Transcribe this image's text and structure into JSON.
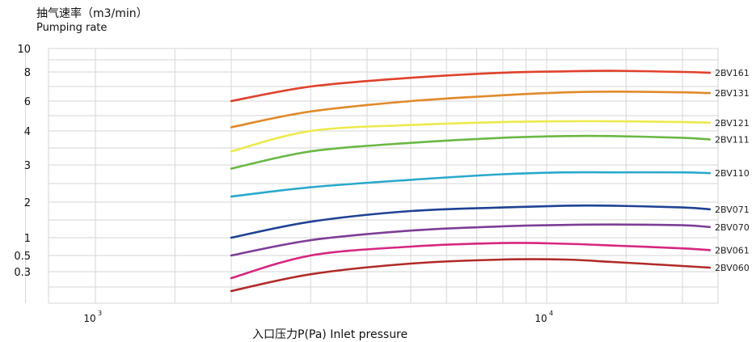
{
  "chart_data": {
    "type": "line",
    "title": "",
    "ylabel_cn": "抽气速率（m3/min）",
    "ylabel_en": "Pumping  rate",
    "xlabel": "入口压力P(Pa) Inlet pressure",
    "y_ticks": [
      "10",
      "8",
      "6",
      "4",
      "3",
      "2",
      "1",
      "0.5",
      "0.3"
    ],
    "x_ticks": [
      {
        "value": 1000,
        "base": "10",
        "exp": "3"
      },
      {
        "value": 10000,
        "base": "10",
        "exp": "4"
      }
    ],
    "x_scale": "log",
    "x_range": [
      650,
      25000
    ],
    "grid": true,
    "series": [
      {
        "name": "2BV161",
        "color": "#e0412c",
        "x": [
          2000,
          3000,
          5000,
          8000,
          11000,
          14000,
          20000,
          23000
        ],
        "y": [
          6.0,
          7.0,
          7.6,
          7.95,
          8.05,
          8.1,
          8.0,
          7.95
        ]
      },
      {
        "name": "2BV131",
        "color": "#e08a2a",
        "x": [
          2000,
          3000,
          5000,
          8000,
          11000,
          14000,
          20000,
          23000
        ],
        "y": [
          4.25,
          5.3,
          6.0,
          6.4,
          6.6,
          6.65,
          6.6,
          6.55
        ]
      },
      {
        "name": "2BV121",
        "color": "#ecea4c",
        "x": [
          2000,
          3000,
          5000,
          8000,
          11000,
          14000,
          20000,
          23000
        ],
        "y": [
          3.4,
          4.0,
          4.4,
          4.6,
          4.65,
          4.65,
          4.6,
          4.55
        ]
      },
      {
        "name": "2BV111",
        "color": "#6ab844",
        "x": [
          2000,
          3000,
          5000,
          8000,
          11000,
          14000,
          20000,
          23000
        ],
        "y": [
          2.9,
          3.4,
          3.65,
          3.8,
          3.85,
          3.85,
          3.8,
          3.75
        ]
      },
      {
        "name": "2BV110",
        "color": "#2aa8cc",
        "x": [
          2000,
          3000,
          5000,
          8000,
          11000,
          14000,
          20000,
          23000
        ],
        "y": [
          2.15,
          2.4,
          2.6,
          2.75,
          2.8,
          2.8,
          2.8,
          2.78
        ]
      },
      {
        "name": "2BV071",
        "color": "#1f4294",
        "x": [
          2000,
          3000,
          5000,
          8000,
          11000,
          14000,
          20000,
          23000
        ],
        "y": [
          1.0,
          1.45,
          1.75,
          1.85,
          1.9,
          1.9,
          1.85,
          1.8
        ]
      },
      {
        "name": "2BV070",
        "color": "#7d3e96",
        "x": [
          2000,
          3000,
          5000,
          8000,
          11000,
          14000,
          20000,
          23000
        ],
        "y": [
          0.5,
          0.93,
          1.2,
          1.32,
          1.36,
          1.37,
          1.35,
          1.3
        ]
      },
      {
        "name": "2BV061",
        "color": "#d62680",
        "x": [
          2000,
          3000,
          5000,
          8000,
          11000,
          14000,
          20000,
          23000
        ],
        "y": [
          0.25,
          0.5,
          0.75,
          0.85,
          0.83,
          0.78,
          0.7,
          0.65
        ]
      },
      {
        "name": "2BV060",
        "color": "#b02a28",
        "x": [
          2000,
          3000,
          5000,
          8000,
          11000,
          14000,
          20000,
          23000
        ],
        "y": [
          0.15,
          0.28,
          0.4,
          0.45,
          0.45,
          0.42,
          0.37,
          0.35
        ]
      }
    ]
  }
}
